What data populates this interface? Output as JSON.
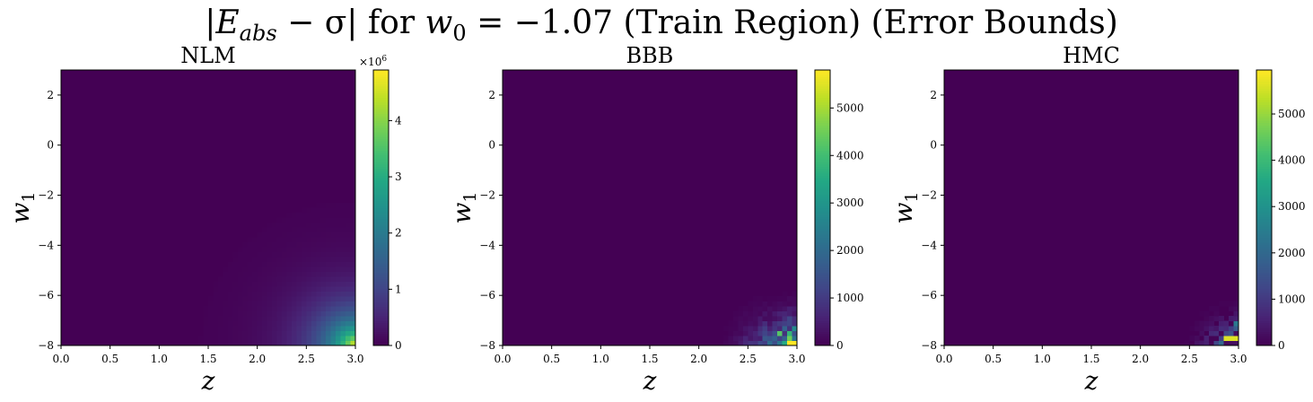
{
  "figure": {
    "title": "|E_abs − σ| for w₀ = −1.07 (Train Region) (Error Bounds)",
    "title_parts": {
      "prefix": "|",
      "e": "E",
      "e_sub": "abs",
      "minus_sigma": " − σ| for ",
      "w": "w",
      "w_sub": "0",
      "suffix": " = −1.07 (Train Region) (Error Bounds)"
    }
  },
  "colormap": "viridis",
  "chart_data": [
    {
      "type": "heatmap",
      "title": "NLM",
      "xlabel": "z",
      "ylabel": "w",
      "ylabel_sub": "1",
      "xlim": [
        0.0,
        3.0
      ],
      "ylim": [
        -8,
        3
      ],
      "xticks": [
        "0.0",
        "0.5",
        "1.0",
        "1.5",
        "2.0",
        "2.5",
        "3.0"
      ],
      "yticks": [
        "2",
        "0",
        "−2",
        "−4",
        "−6",
        "−8"
      ],
      "colorbar": {
        "min": 0,
        "max": 4.9,
        "ticks": [
          "0",
          "1",
          "2",
          "3",
          "4"
        ],
        "tick_values": [
          0,
          1,
          2,
          3,
          4
        ],
        "offset_label": "×10",
        "offset_exp": "6"
      },
      "pattern": "smooth",
      "peak_value": 4.9
    },
    {
      "type": "heatmap",
      "title": "BBB",
      "xlabel": "z",
      "ylabel": "w",
      "ylabel_sub": "1",
      "xlim": [
        0.0,
        3.0
      ],
      "ylim": [
        -8,
        3
      ],
      "xticks": [
        "0.0",
        "0.5",
        "1.0",
        "1.5",
        "2.0",
        "2.5",
        "3.0"
      ],
      "yticks": [
        "2",
        "0",
        "−2",
        "−4",
        "−6",
        "−8"
      ],
      "colorbar": {
        "min": 0,
        "max": 5800,
        "ticks": [
          "0",
          "1000",
          "2000",
          "3000",
          "4000",
          "5000"
        ],
        "tick_values": [
          0,
          1000,
          2000,
          3000,
          4000,
          5000
        ],
        "offset_label": "",
        "offset_exp": ""
      },
      "pattern": "noisy",
      "seed": 7,
      "peak_value": 5800
    },
    {
      "type": "heatmap",
      "title": "HMC",
      "xlabel": "z",
      "ylabel": "w",
      "ylabel_sub": "1",
      "xlim": [
        0.0,
        3.0
      ],
      "ylim": [
        -8,
        3
      ],
      "xticks": [
        "0.0",
        "0.5",
        "1.0",
        "1.5",
        "2.0",
        "2.5",
        "3.0"
      ],
      "yticks": [
        "2",
        "0",
        "−2",
        "−4",
        "−6",
        "−8"
      ],
      "colorbar": {
        "min": 0,
        "max": 5950,
        "ticks": [
          "0",
          "1000",
          "2000",
          "3000",
          "4000",
          "5000"
        ],
        "tick_values": [
          0,
          1000,
          2000,
          3000,
          4000,
          5000
        ],
        "offset_label": "",
        "offset_exp": ""
      },
      "pattern": "sparse",
      "seed": 19,
      "peak_value": 5950
    }
  ]
}
